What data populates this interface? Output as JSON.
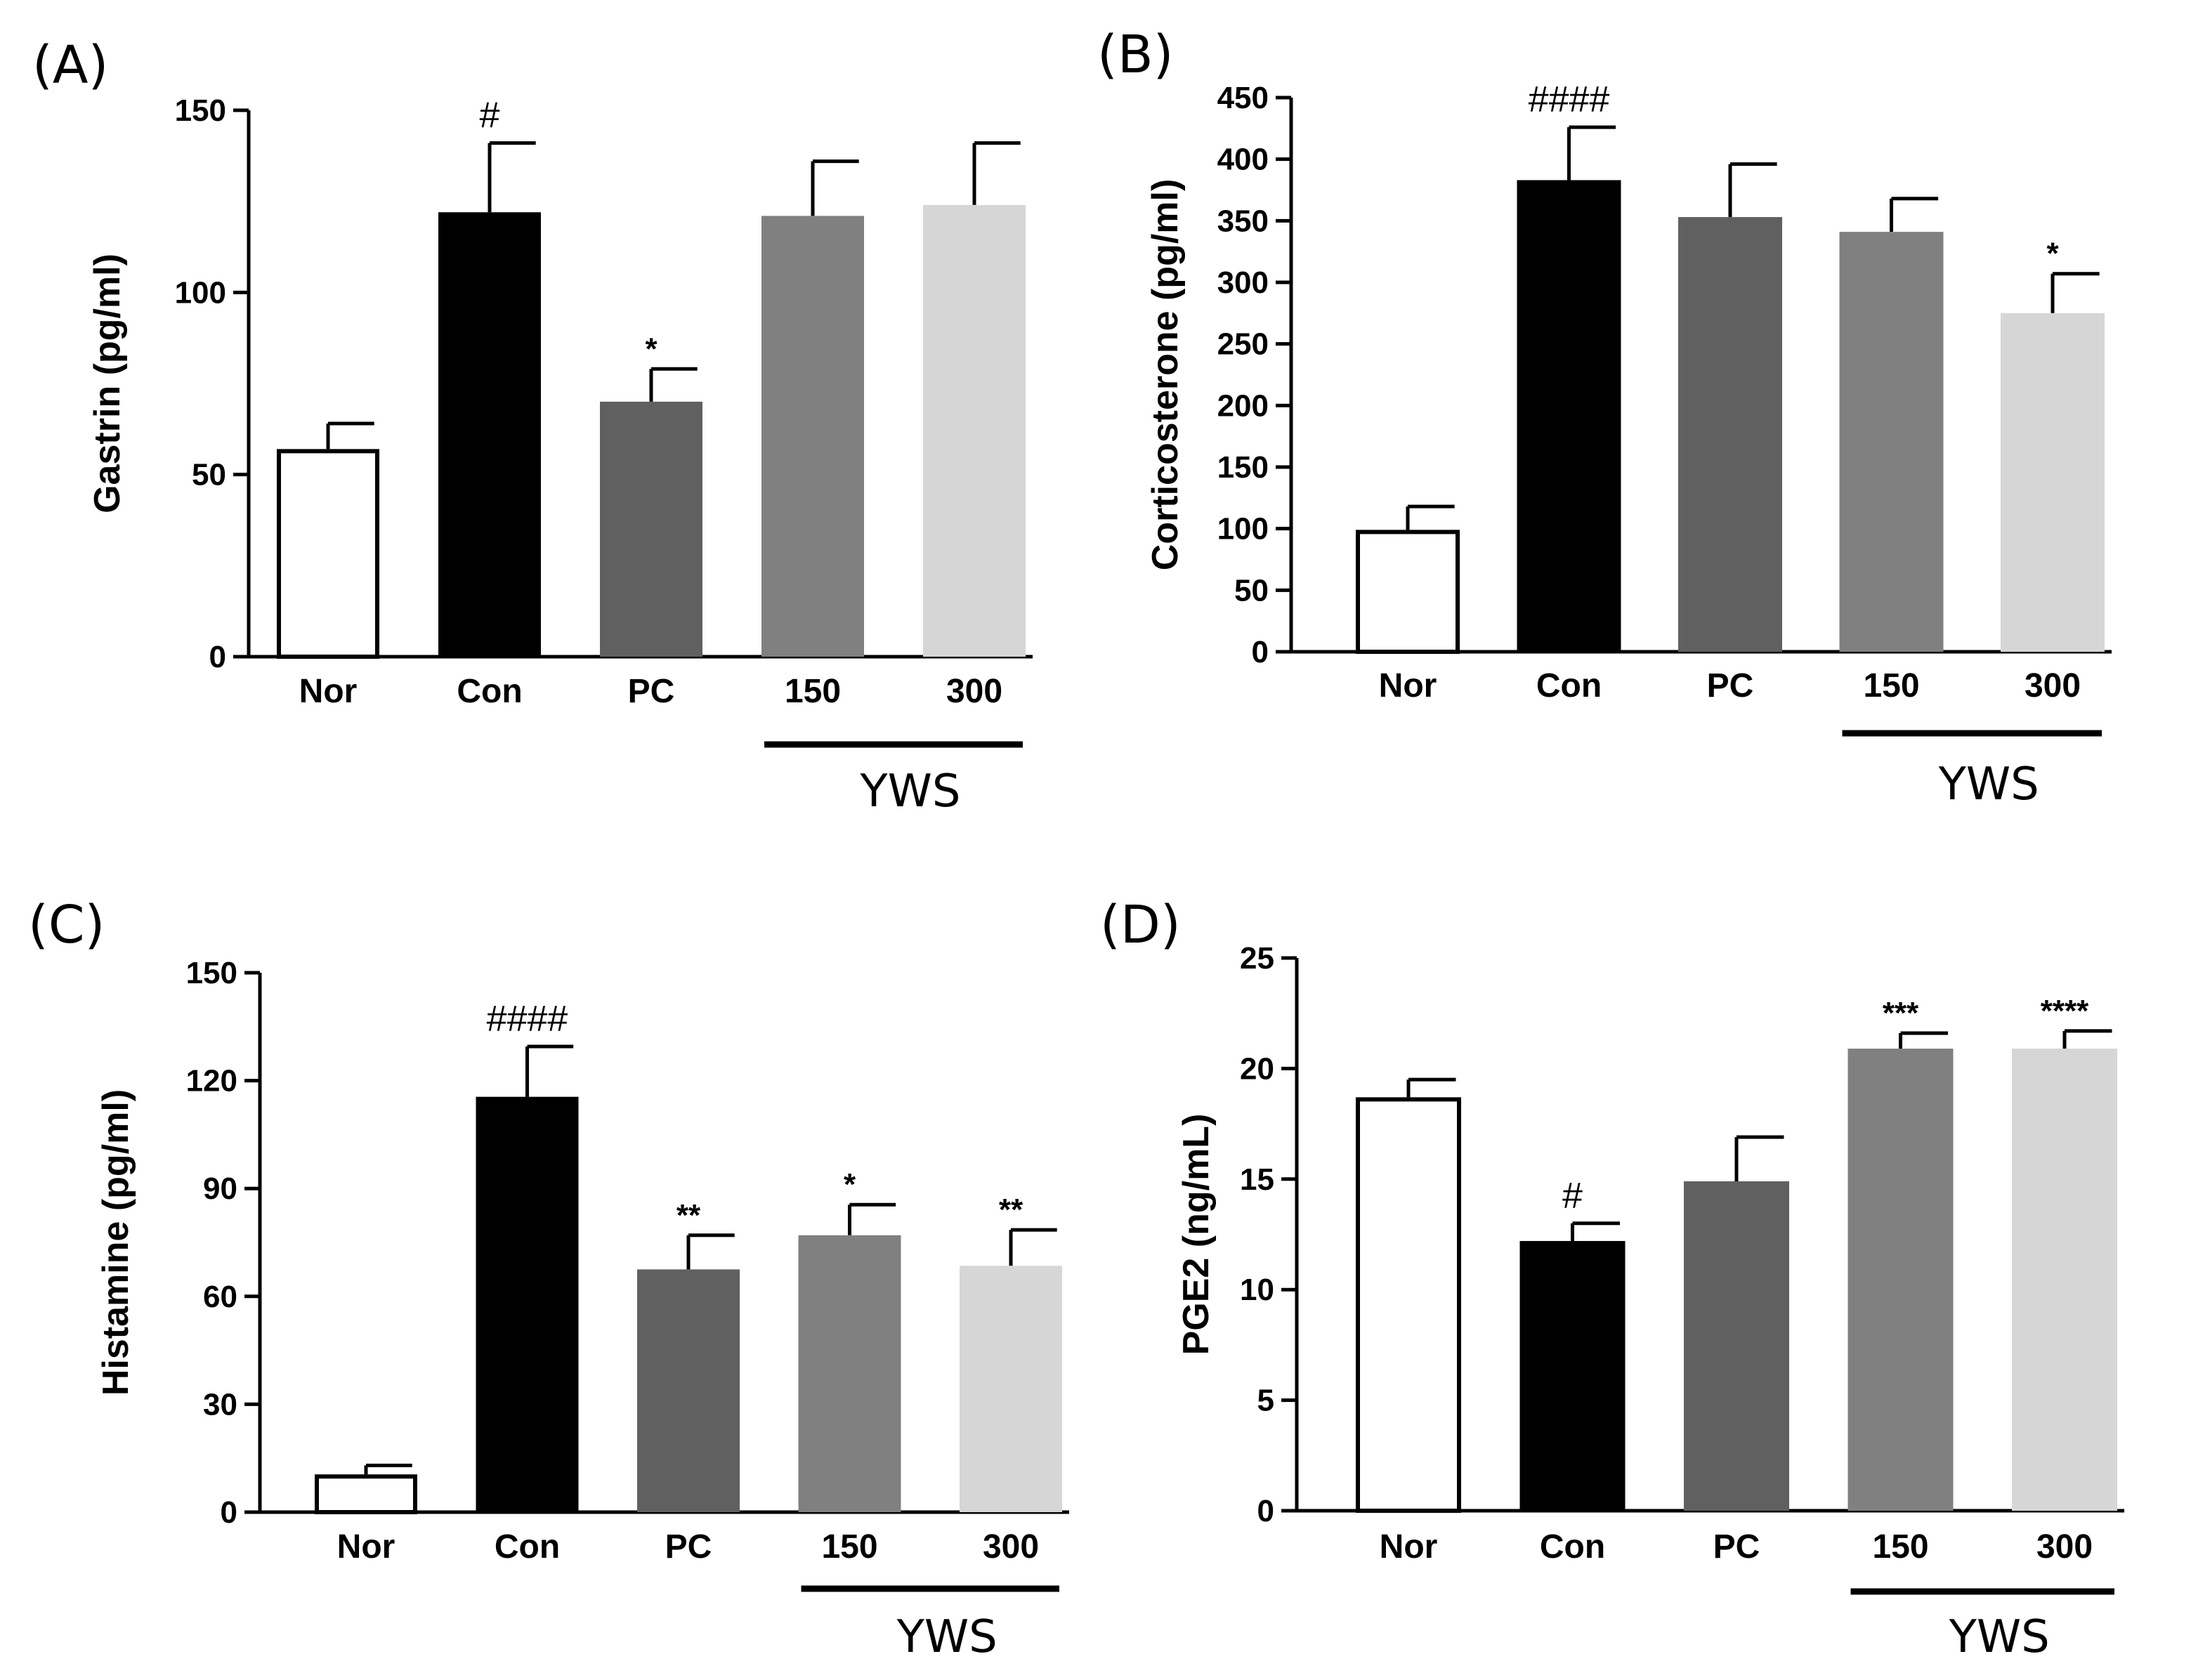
{
  "chart_data": [
    {
      "type": "bar",
      "panel_label": "(A)",
      "ylabel": "Gastrin (pg/ml)",
      "categories": [
        "Nor",
        "Con",
        "PC",
        "150",
        "300"
      ],
      "values": [
        57,
        122,
        70,
        121,
        124
      ],
      "errors": [
        7,
        19,
        9,
        15,
        17
      ],
      "annotations": [
        "",
        "#",
        "*",
        "",
        ""
      ],
      "ylim": [
        0,
        150
      ],
      "yticks": [
        "0",
        "50",
        "100",
        "150"
      ],
      "group_label": "YWS",
      "group_categories": [
        "150",
        "300"
      ],
      "bar_colors": [
        "#ffffff",
        "#000000",
        "#606060",
        "#808080",
        "#d6d6d6"
      ]
    },
    {
      "type": "bar",
      "panel_label": "(B)",
      "ylabel": "Corticosterone (pg/ml)",
      "categories": [
        "Nor",
        "Con",
        "PC",
        "150",
        "300"
      ],
      "values": [
        99,
        383,
        353,
        341,
        275
      ],
      "errors": [
        19,
        43,
        43,
        27,
        32
      ],
      "annotations": [
        "",
        "####",
        "",
        "",
        "*"
      ],
      "ylim": [
        0,
        450
      ],
      "yticks": [
        "0",
        "50",
        "100",
        "150",
        "200",
        "250",
        "300",
        "350",
        "400",
        "450"
      ],
      "group_label": "YWS",
      "group_categories": [
        "150",
        "300"
      ],
      "bar_colors": [
        "#ffffff",
        "#000000",
        "#606060",
        "#808080",
        "#d6d6d6"
      ]
    },
    {
      "type": "bar",
      "panel_label": "(C)",
      "ylabel": "Histamine (pg/ml)",
      "categories": [
        "Nor",
        "Con",
        "PC",
        "150",
        "300"
      ],
      "values": [
        10.5,
        115.5,
        67.5,
        77,
        68.5
      ],
      "errors": [
        2.5,
        14,
        9.5,
        8.5,
        10
      ],
      "annotations": [
        "",
        "####",
        "**",
        "*",
        "**"
      ],
      "ylim": [
        0,
        150
      ],
      "yticks": [
        "0",
        "30",
        "60",
        "90",
        "120",
        "150"
      ],
      "group_label": "YWS",
      "group_categories": [
        "150",
        "300"
      ],
      "bar_colors": [
        "#ffffff",
        "#000000",
        "#606060",
        "#808080",
        "#d6d6d6"
      ]
    },
    {
      "type": "bar",
      "panel_label": "(D)",
      "ylabel": "PGE2 (ng/mL)",
      "categories": [
        "Nor",
        "Con",
        "PC",
        "150",
        "300"
      ],
      "values": [
        18.7,
        12.2,
        14.9,
        20.9,
        20.9
      ],
      "errors": [
        0.8,
        0.8,
        2.0,
        0.7,
        0.8
      ],
      "annotations": [
        "",
        "#",
        "",
        "***",
        "****"
      ],
      "ylim": [
        0,
        25
      ],
      "yticks": [
        "0",
        "5",
        "10",
        "15",
        "20",
        "25"
      ],
      "group_label": "YWS",
      "group_categories": [
        "150",
        "300"
      ],
      "bar_colors": [
        "#ffffff",
        "#000000",
        "#606060",
        "#808080",
        "#d6d6d6"
      ]
    }
  ]
}
